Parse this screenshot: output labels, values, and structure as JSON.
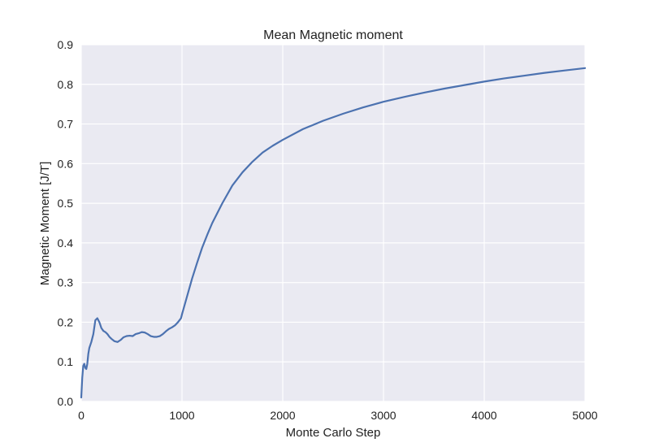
{
  "chart_data": {
    "type": "line",
    "title": "Mean Magnetic moment",
    "xlabel": "Monte Carlo Step",
    "ylabel": "Magnetic Moment [J/T]",
    "xlim": [
      0,
      5000
    ],
    "ylim": [
      0,
      0.9
    ],
    "xticks": [
      "0",
      "1000",
      "2000",
      "3000",
      "4000",
      "5000"
    ],
    "yticks": [
      "0.0",
      "0.1",
      "0.2",
      "0.3",
      "0.4",
      "0.5",
      "0.6",
      "0.7",
      "0.8",
      "0.9"
    ],
    "grid": true,
    "background_color": "#eaeaf2",
    "grid_color": "#ffffff",
    "series": [
      {
        "color": "#4c72b0",
        "x": [
          0,
          10,
          20,
          30,
          40,
          50,
          60,
          70,
          80,
          100,
          120,
          140,
          160,
          180,
          200,
          220,
          240,
          260,
          280,
          300,
          330,
          360,
          390,
          420,
          450,
          480,
          510,
          540,
          570,
          600,
          630,
          660,
          690,
          720,
          750,
          780,
          810,
          840,
          870,
          900,
          930,
          960,
          990,
          1000,
          1050,
          1100,
          1150,
          1200,
          1250,
          1300,
          1400,
          1500,
          1600,
          1700,
          1800,
          1900,
          2000,
          2200,
          2400,
          2600,
          2800,
          3000,
          3200,
          3400,
          3600,
          3800,
          4000,
          4200,
          4400,
          4600,
          4800,
          5000
        ],
        "y": [
          0.01,
          0.06,
          0.09,
          0.095,
          0.085,
          0.082,
          0.095,
          0.12,
          0.135,
          0.15,
          0.17,
          0.205,
          0.21,
          0.2,
          0.185,
          0.178,
          0.175,
          0.17,
          0.163,
          0.158,
          0.152,
          0.15,
          0.155,
          0.162,
          0.165,
          0.166,
          0.165,
          0.17,
          0.172,
          0.175,
          0.174,
          0.17,
          0.165,
          0.163,
          0.163,
          0.165,
          0.17,
          0.177,
          0.183,
          0.187,
          0.192,
          0.2,
          0.21,
          0.22,
          0.265,
          0.31,
          0.35,
          0.388,
          0.42,
          0.45,
          0.5,
          0.545,
          0.578,
          0.605,
          0.628,
          0.645,
          0.66,
          0.687,
          0.708,
          0.726,
          0.742,
          0.756,
          0.768,
          0.779,
          0.789,
          0.798,
          0.807,
          0.815,
          0.822,
          0.829,
          0.835,
          0.841
        ]
      }
    ]
  }
}
